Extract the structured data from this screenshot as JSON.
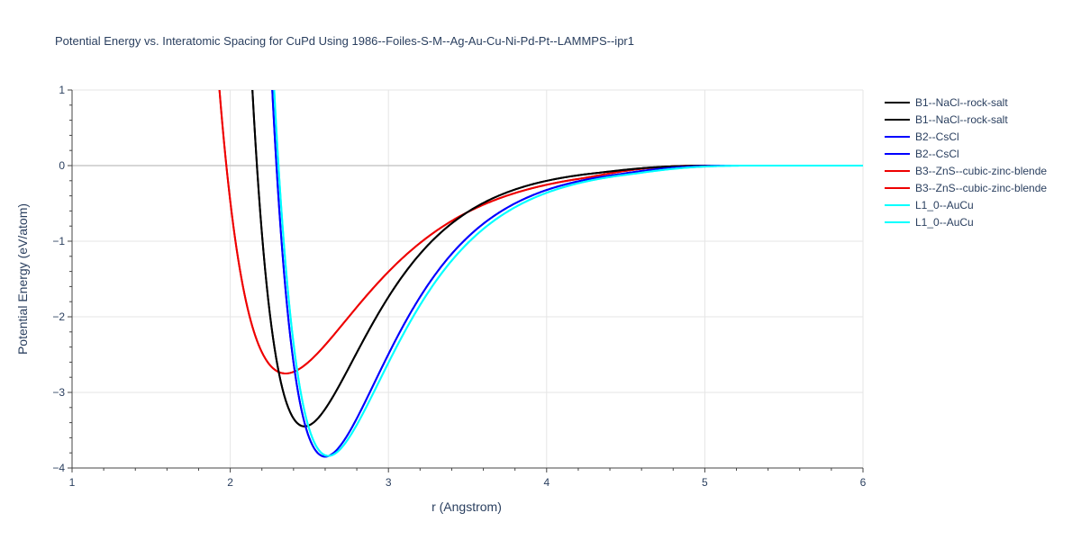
{
  "chart_data": {
    "type": "line",
    "title": "Potential Energy vs. Interatomic Spacing for CuPd Using 1986--Foiles-S-M--Ag-Au-Cu-Ni-Pd-Pt--LAMMPS--ipr1",
    "xlabel": "r (Angstrom)",
    "ylabel": "Potential Energy (eV/atom)",
    "xlim": [
      1,
      6
    ],
    "ylim": [
      -4,
      1
    ],
    "x_ticks": [
      "1",
      "2",
      "3",
      "4",
      "5",
      "6"
    ],
    "y_ticks": [
      "−4",
      "−3",
      "−2",
      "−1",
      "0",
      "1"
    ],
    "grid": true,
    "legend_position": "right",
    "series": [
      {
        "name": "B1--NaCl--rock-salt",
        "color": "#000000",
        "minimum": [
          2.47,
          -3.45
        ]
      },
      {
        "name": "B1--NaCl--rock-salt",
        "color": "#000000",
        "minimum": [
          2.47,
          -3.45
        ]
      },
      {
        "name": "B2--CsCl",
        "color": "#0000ff",
        "minimum": [
          2.6,
          -3.85
        ]
      },
      {
        "name": "B2--CsCl",
        "color": "#0000ff",
        "minimum": [
          2.6,
          -3.85
        ]
      },
      {
        "name": "B3--ZnS--cubic-zinc-blende",
        "color": "#ee0000",
        "minimum": [
          2.35,
          -2.75
        ]
      },
      {
        "name": "B3--ZnS--cubic-zinc-blende",
        "color": "#ee0000",
        "minimum": [
          2.35,
          -2.75
        ]
      },
      {
        "name": "L1_0--AuCu",
        "color": "#00ffff",
        "minimum": [
          2.62,
          -3.84
        ]
      },
      {
        "name": "L1_0--AuCu",
        "color": "#00ffff",
        "minimum": [
          2.62,
          -3.84
        ]
      }
    ]
  }
}
